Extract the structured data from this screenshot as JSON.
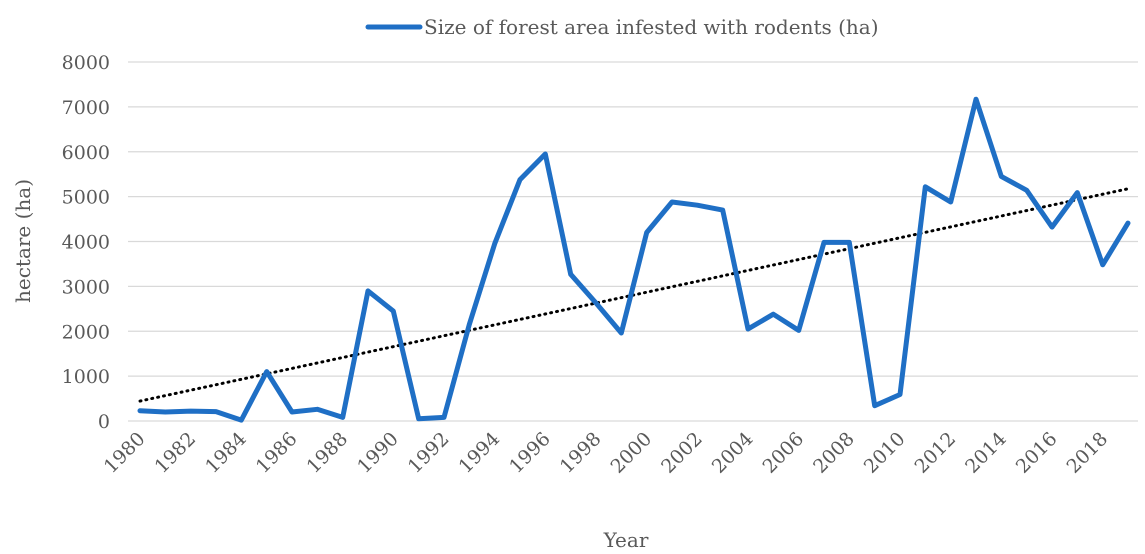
{
  "chart_data": {
    "type": "line",
    "title": "",
    "xlabel": "Year",
    "ylabel": "hectare (ha)",
    "ylim": [
      0,
      8000
    ],
    "yticks": [
      0,
      1000,
      2000,
      3000,
      4000,
      5000,
      6000,
      7000,
      8000
    ],
    "x": [
      1980,
      1981,
      1982,
      1983,
      1984,
      1985,
      1986,
      1987,
      1988,
      1989,
      1990,
      1991,
      1992,
      1993,
      1994,
      1995,
      1996,
      1997,
      1998,
      1999,
      2000,
      2001,
      2002,
      2003,
      2004,
      2005,
      2006,
      2007,
      2008,
      2009,
      2010,
      2011,
      2012,
      2013,
      2014,
      2015,
      2016,
      2017,
      2018,
      2019
    ],
    "xtick_labels": [
      "1980",
      "1982",
      "1984",
      "1986",
      "1988",
      "1990",
      "1992",
      "1994",
      "1996",
      "1998",
      "2000",
      "2002",
      "2004",
      "2006",
      "2008",
      "2010",
      "2012",
      "2014",
      "2016",
      "2018"
    ],
    "series": [
      {
        "name": "Size of forest area infested with rodents (ha)",
        "color": "#1f6fc5",
        "values": [
          230,
          200,
          220,
          210,
          20,
          1100,
          200,
          260,
          80,
          2900,
          2450,
          50,
          80,
          2150,
          3950,
          5380,
          5950,
          3270,
          2630,
          1960,
          4200,
          4880,
          4810,
          4700,
          2050,
          2380,
          2020,
          3980,
          3980,
          340,
          590,
          5220,
          4880,
          7170,
          5450,
          5140,
          4320,
          5090,
          3480,
          4410
        ]
      }
    ],
    "trendline": {
      "type": "linear",
      "style": "dotted",
      "color": "#000000"
    },
    "legend_position": "top",
    "grid": "horizontal"
  }
}
